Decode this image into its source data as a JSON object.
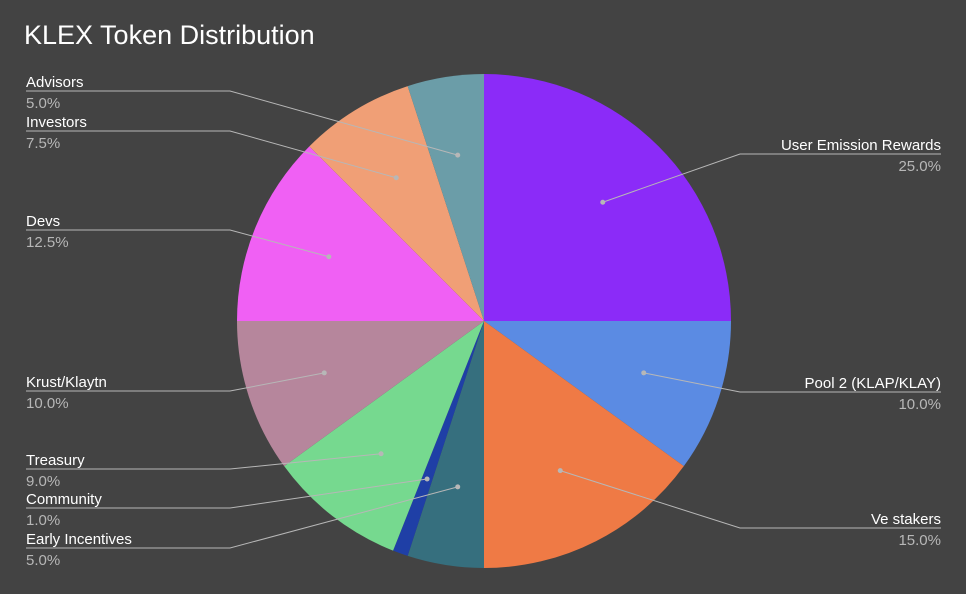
{
  "chart_data": {
    "type": "pie",
    "title": "KLEX Token Distribution",
    "slices": [
      {
        "label": "User Emission Rewards",
        "value": 25.0,
        "pct_label": "25.0%",
        "color": "#8b2bf8"
      },
      {
        "label": "Pool 2 (KLAP/KLAY)",
        "value": 10.0,
        "pct_label": "10.0%",
        "color": "#5b8be3"
      },
      {
        "label": "Ve stakers",
        "value": 15.0,
        "pct_label": "15.0%",
        "color": "#ef7a45"
      },
      {
        "label": "Early Incentives",
        "value": 5.0,
        "pct_label": "5.0%",
        "color": "#366f7e"
      },
      {
        "label": "Community",
        "value": 1.0,
        "pct_label": "1.0%",
        "color": "#1f3fa6"
      },
      {
        "label": "Treasury",
        "value": 9.0,
        "pct_label": "9.0%",
        "color": "#76d98f"
      },
      {
        "label": "Krust/Klaytn",
        "value": 10.0,
        "pct_label": "10.0%",
        "color": "#b6869c"
      },
      {
        "label": "Devs",
        "value": 12.5,
        "pct_label": "12.5%",
        "color": "#f060f4"
      },
      {
        "label": "Investors",
        "value": 7.5,
        "pct_label": "7.5%",
        "color": "#f09f76"
      },
      {
        "label": "Advisors",
        "value": 5.0,
        "pct_label": "5.0%",
        "color": "#6b9da8"
      }
    ],
    "start_angle": "12 o'clock",
    "direction": "clockwise",
    "legend": "none",
    "background": "#434343"
  }
}
